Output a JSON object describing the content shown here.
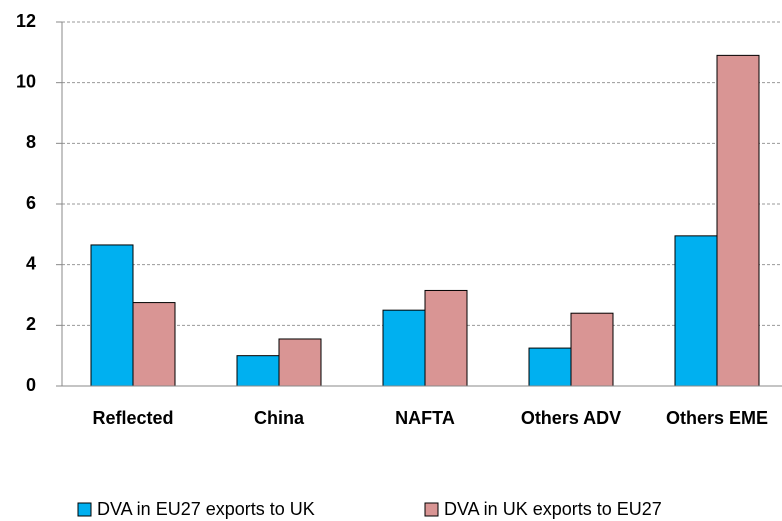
{
  "chart_data": {
    "type": "bar",
    "categories": [
      "Reflected",
      "China",
      "NAFTA",
      "Others ADV",
      "Others EME"
    ],
    "series": [
      {
        "name": "DVA in EU27 exports to UK",
        "color": "#00b0f0",
        "values": [
          4.65,
          1.0,
          2.5,
          1.25,
          4.95
        ]
      },
      {
        "name": "DVA in UK exports to EU27",
        "color": "#d99594",
        "values": [
          2.75,
          1.55,
          3.15,
          2.4,
          10.9
        ]
      }
    ],
    "ylim": [
      0,
      12
    ],
    "yticks": [
      0,
      2,
      4,
      6,
      8,
      10,
      12
    ],
    "grid": true,
    "legend": "bottom"
  }
}
